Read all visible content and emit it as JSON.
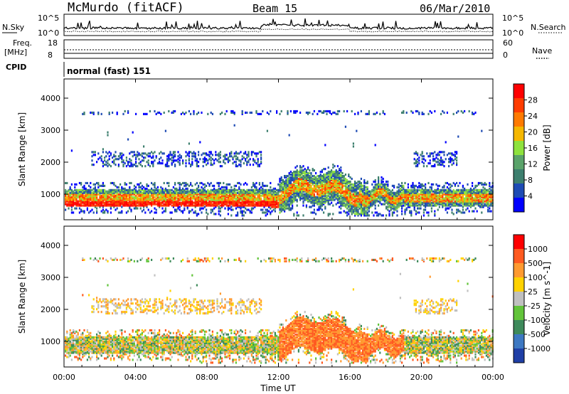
{
  "header": {
    "station": "McMurdo (fitACF)",
    "beam": "Beam 15",
    "date": "06/Mar/2010"
  },
  "panels": {
    "nsky_label": "N.Sky",
    "nsearch_label": "N.Search",
    "noise_ticks": [
      "10^5",
      "10^0"
    ],
    "freq_label_1": "Freq.",
    "freq_label_2": "[MHz]",
    "freq_ticks": [
      "18",
      "8"
    ],
    "nave_label": "Nave",
    "nave_ticks": [
      "60",
      "0"
    ],
    "cpid_label": "CPID",
    "cpid_text": "normal (fast) 151"
  },
  "colors": {
    "power_scale": [
      "#0000ff",
      "#1e4bb4",
      "#3d7f6e",
      "#5aa36a",
      "#8ee23d",
      "#f5b700",
      "#ff7a00",
      "#ff3c00",
      "#ff0000"
    ],
    "velocity_scale": [
      "#1f3fa6",
      "#3d78c2",
      "#3e8a5b",
      "#62c43a",
      "#c0c0c0",
      "#ffd200",
      "#ff9a30",
      "#ff5a20",
      "#ff0000"
    ]
  },
  "chart_data": [
    {
      "type": "heatmap",
      "title": "",
      "ylabel": "Slant Range [km]",
      "xlabel": "",
      "yticks": [
        "1000",
        "2000",
        "3000",
        "4000"
      ],
      "ylim": [
        200,
        4600
      ],
      "colorbar_label": "Power [dB]",
      "colorbar_ticks": [
        "4",
        "8",
        "12",
        "16",
        "20",
        "24",
        "28"
      ],
      "colorbar_range": [
        0,
        32
      ]
    },
    {
      "type": "heatmap",
      "title": "",
      "ylabel": "Slant Range [km]",
      "xlabel": "Time UT",
      "xticks": [
        "00:00",
        "04:00",
        "08:00",
        "12:00",
        "16:00",
        "20:00",
        "00:00"
      ],
      "yticks": [
        "1000",
        "2000",
        "3000",
        "4000"
      ],
      "ylim": [
        200,
        4600
      ],
      "colorbar_label": "Velocity [m s^-1]",
      "colorbar_ticks": [
        "1000",
        "500",
        "100",
        "25",
        "-25",
        "-100",
        "-500",
        "-1000"
      ],
      "colorbar_range": [
        -1000,
        1000
      ]
    }
  ]
}
